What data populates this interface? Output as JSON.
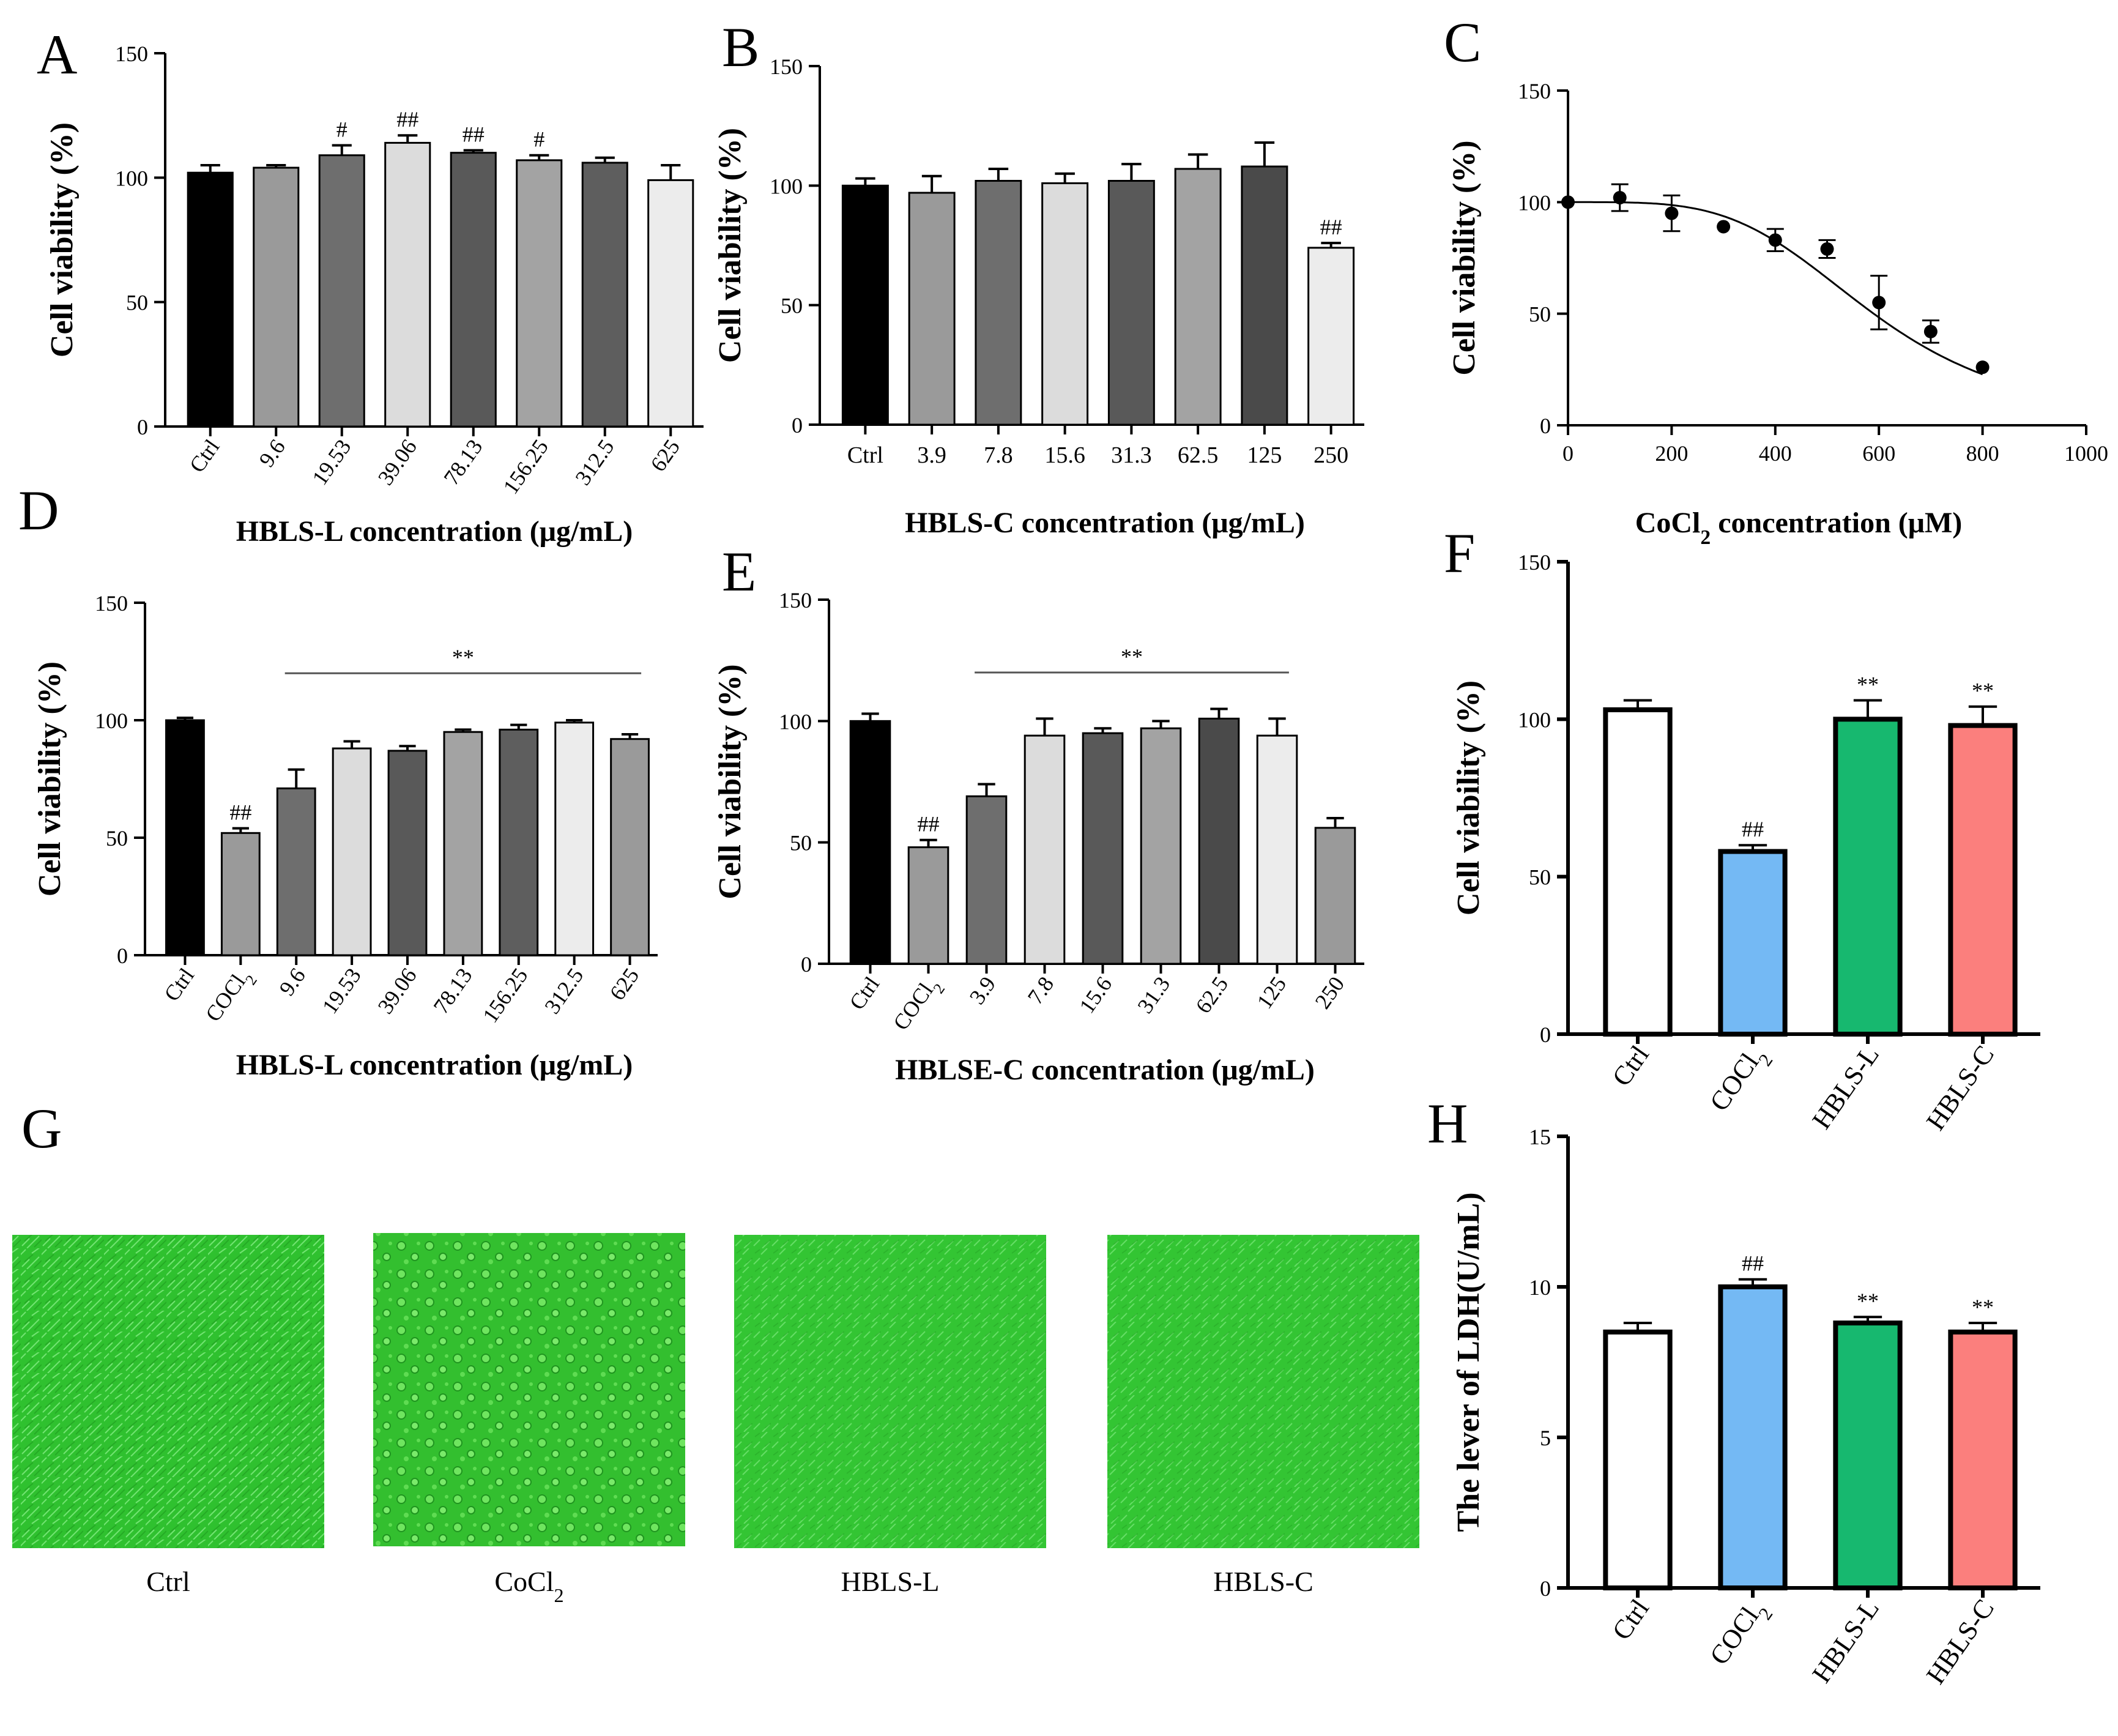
{
  "panels": [
    {
      "id": "A",
      "type": "bar",
      "letter": "A",
      "ylabel": "Cell viability (%)",
      "xlabel": "HBLS-L concentration (μg/mL)",
      "ylim": [
        0,
        150
      ],
      "yticks": [
        0,
        50,
        100,
        150
      ],
      "categories": [
        "Ctrl",
        "9.6",
        "19.53",
        "39.06",
        "78.13",
        "156.25",
        "312.5",
        "625"
      ],
      "values": [
        102,
        104,
        109,
        114,
        110,
        107,
        106,
        99
      ],
      "errors": [
        3,
        1,
        4,
        3,
        1,
        2,
        2,
        6
      ],
      "significance": [
        "",
        "",
        "#",
        "##",
        "##",
        "#",
        "",
        ""
      ],
      "colors": [
        "#000000",
        "#9a9a9a",
        "#6e6e6e",
        "#dcdcdc",
        "#595959",
        "#a3a3a3",
        "#5e5e5e",
        "#ececec"
      ]
    },
    {
      "id": "B",
      "type": "bar",
      "letter": "B",
      "ylabel": "Cell viability (%)",
      "xlabel": "HBLS-C concentration (μg/mL)",
      "ylim": [
        0,
        150
      ],
      "yticks": [
        0,
        50,
        100,
        150
      ],
      "categories": [
        "Ctrl",
        "3.9",
        "7.8",
        "15.6",
        "31.3",
        "62.5",
        "125",
        "250"
      ],
      "values": [
        100,
        97,
        102,
        101,
        102,
        107,
        108,
        74
      ],
      "errors": [
        3,
        7,
        5,
        4,
        7,
        6,
        10,
        2
      ],
      "significance": [
        "",
        "",
        "",
        "",
        "",
        "",
        "",
        "##"
      ],
      "colors": [
        "#000000",
        "#9a9a9a",
        "#6e6e6e",
        "#dcdcdc",
        "#595959",
        "#a3a3a3",
        "#4a4a4a",
        "#ececec"
      ]
    },
    {
      "id": "C",
      "type": "scatter",
      "letter": "C",
      "ylabel": "Cell viability (%)",
      "xlabel_main": "CoCl",
      "xlabel_sub": "2",
      "xlabel_rest": " concentration (μM)",
      "xlim": [
        0,
        1000
      ],
      "xticks": [
        0,
        200,
        400,
        600,
        800,
        1000
      ],
      "ylim": [
        0,
        150
      ],
      "yticks": [
        0,
        50,
        100,
        150
      ],
      "x": [
        0,
        100,
        200,
        300,
        400,
        500,
        600,
        700,
        800
      ],
      "y": [
        100,
        102,
        95,
        89,
        83,
        79,
        55,
        42,
        26
      ],
      "errors": [
        0,
        6,
        8,
        0,
        5,
        4,
        12,
        5,
        0
      ],
      "fit": {
        "top": 100,
        "ic50": 590,
        "hill": 4
      }
    },
    {
      "id": "D",
      "type": "bar",
      "letter": "D",
      "ylabel": "Cell viability (%)",
      "xlabel": "HBLS-L concentration (μg/mL)",
      "ylim": [
        0,
        150
      ],
      "yticks": [
        0,
        50,
        100,
        150
      ],
      "categories": [
        "Ctrl",
        "COCl2",
        "9.6",
        "19.53",
        "39.06",
        "78.13",
        "156.25",
        "312.5",
        "625"
      ],
      "values": [
        100,
        52,
        71,
        88,
        87,
        95,
        96,
        99,
        92
      ],
      "errors": [
        1,
        2,
        8,
        3,
        2,
        1,
        2,
        1,
        2
      ],
      "significance": [
        "",
        "##",
        "",
        "",
        "",
        "",
        "",
        "",
        ""
      ],
      "bracket": {
        "from": 2,
        "to": 8,
        "label": "**"
      },
      "colors": [
        "#000000",
        "#9a9a9a",
        "#6e6e6e",
        "#dcdcdc",
        "#595959",
        "#a3a3a3",
        "#5e5e5e",
        "#ececec",
        "#9a9a9a"
      ]
    },
    {
      "id": "E",
      "type": "bar",
      "letter": "E",
      "ylabel": "Cell viability (%)",
      "xlabel": "HBLSE-C concentration (μg/mL)",
      "ylim": [
        0,
        150
      ],
      "yticks": [
        0,
        50,
        100,
        150
      ],
      "categories": [
        "Ctrl",
        "COCl2",
        "3.9",
        "7.8",
        "15.6",
        "31.3",
        "62.5",
        "125",
        "250"
      ],
      "values": [
        100,
        48,
        69,
        94,
        95,
        97,
        101,
        94,
        56
      ],
      "errors": [
        3,
        3,
        5,
        7,
        2,
        3,
        4,
        7,
        4
      ],
      "significance": [
        "",
        "##",
        "",
        "",
        "",
        "",
        "",
        "",
        ""
      ],
      "bracket": {
        "from": 2,
        "to": 7,
        "label": "**"
      },
      "colors": [
        "#000000",
        "#9a9a9a",
        "#6e6e6e",
        "#dcdcdc",
        "#595959",
        "#a3a3a3",
        "#4a4a4a",
        "#ececec",
        "#9a9a9a"
      ]
    },
    {
      "id": "F",
      "type": "bar",
      "letter": "F",
      "outlined": true,
      "ylabel": "Cell viability (%)",
      "ylim": [
        0,
        150
      ],
      "yticks": [
        0,
        50,
        100,
        150
      ],
      "categories": [
        "Ctrl",
        "COCl2",
        "HBLS-L",
        "HBLS-C"
      ],
      "values": [
        103,
        58,
        100,
        98
      ],
      "errors": [
        3,
        2,
        6,
        6
      ],
      "significance": [
        "",
        "##",
        "**",
        "**"
      ],
      "colors": [
        "#ffffff",
        "#74b9f4",
        "#17b86f",
        "#fb7f7d"
      ]
    },
    {
      "id": "H",
      "type": "bar",
      "letter": "H",
      "outlined": true,
      "ylabel": "The lever of LDH(U/mL)",
      "ylim": [
        0,
        15
      ],
      "yticks": [
        0,
        5,
        10,
        15
      ],
      "categories": [
        "Ctrl",
        "COCl2",
        "HBLS-L",
        "HBLS-C"
      ],
      "values": [
        8.5,
        10.0,
        8.8,
        8.5
      ],
      "errors": [
        0.3,
        0.25,
        0.2,
        0.3
      ],
      "significance": [
        "",
        "##",
        "**",
        "**"
      ],
      "colors": [
        "#ffffff",
        "#74b9f4",
        "#17b86f",
        "#fb7f7d"
      ]
    }
  ],
  "micrographs": {
    "letter": "G",
    "items": [
      {
        "label": "Ctrl",
        "sub": "",
        "texture": "dense"
      },
      {
        "label": "CoCl",
        "sub": "2",
        "texture": "round"
      },
      {
        "label": "HBLS-L",
        "sub": "",
        "texture": "medium"
      },
      {
        "label": "HBLS-C",
        "sub": "",
        "texture": "medium"
      }
    ]
  },
  "chart_data": [
    {
      "panel": "A",
      "type": "bar",
      "xlabel": "HBLS-L concentration (μg/mL)",
      "ylabel": "Cell viability (%)",
      "ylim": [
        0,
        150
      ],
      "categories": [
        "Ctrl",
        "9.6",
        "19.53",
        "39.06",
        "78.13",
        "156.25",
        "312.5",
        "625"
      ],
      "values": [
        102,
        104,
        109,
        114,
        110,
        107,
        106,
        99
      ]
    },
    {
      "panel": "B",
      "type": "bar",
      "xlabel": "HBLS-C concentration (μg/mL)",
      "ylabel": "Cell viability (%)",
      "ylim": [
        0,
        150
      ],
      "categories": [
        "Ctrl",
        "3.9",
        "7.8",
        "15.6",
        "31.3",
        "62.5",
        "125",
        "250"
      ],
      "values": [
        100,
        97,
        102,
        101,
        102,
        107,
        108,
        74
      ]
    },
    {
      "panel": "C",
      "type": "scatter",
      "xlabel": "CoCl2 concentration (μM)",
      "ylabel": "Cell viability (%)",
      "xlim": [
        0,
        1000
      ],
      "ylim": [
        0,
        150
      ],
      "x": [
        0,
        100,
        200,
        300,
        400,
        500,
        600,
        700,
        800
      ],
      "y": [
        100,
        102,
        95,
        89,
        83,
        79,
        55,
        42,
        26
      ]
    },
    {
      "panel": "D",
      "type": "bar",
      "xlabel": "HBLS-L concentration (μg/mL)",
      "ylabel": "Cell viability (%)",
      "ylim": [
        0,
        150
      ],
      "categories": [
        "Ctrl",
        "COCl2",
        "9.6",
        "19.53",
        "39.06",
        "78.13",
        "156.25",
        "312.5",
        "625"
      ],
      "values": [
        100,
        52,
        71,
        88,
        87,
        95,
        96,
        99,
        92
      ]
    },
    {
      "panel": "E",
      "type": "bar",
      "xlabel": "HBLSE-C concentration (μg/mL)",
      "ylabel": "Cell viability (%)",
      "ylim": [
        0,
        150
      ],
      "categories": [
        "Ctrl",
        "COCl2",
        "3.9",
        "7.8",
        "15.6",
        "31.3",
        "62.5",
        "125",
        "250"
      ],
      "values": [
        100,
        48,
        69,
        94,
        95,
        97,
        101,
        94,
        56
      ]
    },
    {
      "panel": "F",
      "type": "bar",
      "ylabel": "Cell viability (%)",
      "ylim": [
        0,
        150
      ],
      "categories": [
        "Ctrl",
        "COCl2",
        "HBLS-L",
        "HBLS-C"
      ],
      "values": [
        103,
        58,
        100,
        98
      ]
    },
    {
      "panel": "H",
      "type": "bar",
      "ylabel": "The lever of LDH(U/mL)",
      "ylim": [
        0,
        15
      ],
      "categories": [
        "Ctrl",
        "COCl2",
        "HBLS-L",
        "HBLS-C"
      ],
      "values": [
        8.5,
        10.0,
        8.8,
        8.5
      ]
    }
  ]
}
